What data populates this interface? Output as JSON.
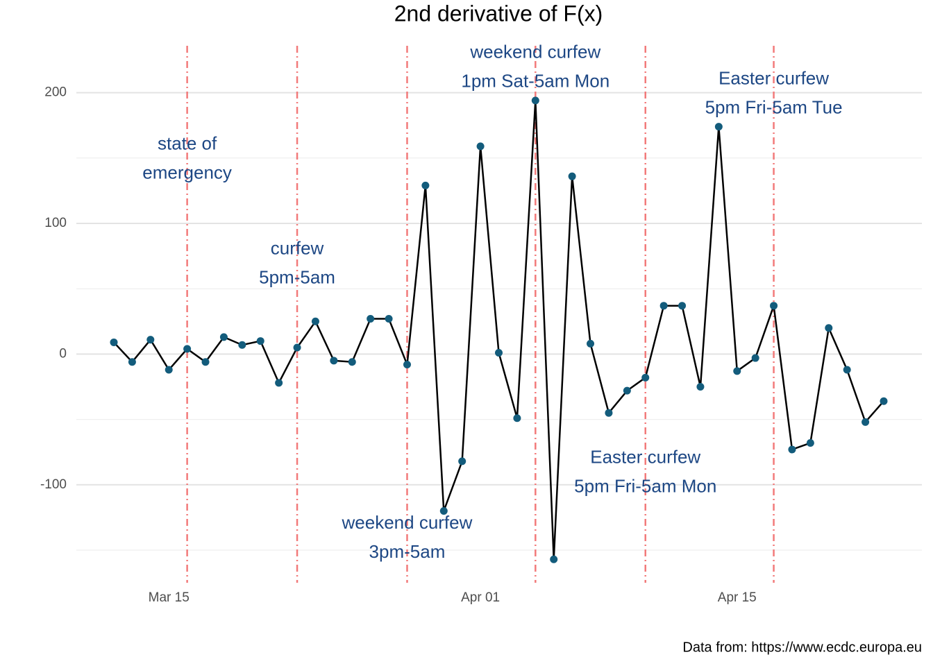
{
  "chart_data": {
    "type": "line",
    "title": "2nd derivative of F(x)",
    "caption": "Data from: https://www.ecdc.europa.eu",
    "x": [
      "Mar 12",
      "Mar 13",
      "Mar 14",
      "Mar 15",
      "Mar 16",
      "Mar 17",
      "Mar 18",
      "Mar 19",
      "Mar 20",
      "Mar 21",
      "Mar 22",
      "Mar 23",
      "Mar 24",
      "Mar 25",
      "Mar 26",
      "Mar 27",
      "Mar 28",
      "Mar 29",
      "Mar 30",
      "Mar 31",
      "Apr 01",
      "Apr 02",
      "Apr 03",
      "Apr 04",
      "Apr 05",
      "Apr 06",
      "Apr 07",
      "Apr 08",
      "Apr 09",
      "Apr 10",
      "Apr 11",
      "Apr 12",
      "Apr 13",
      "Apr 14",
      "Apr 15",
      "Apr 16",
      "Apr 17",
      "Apr 18",
      "Apr 19",
      "Apr 20",
      "Apr 21",
      "Apr 22",
      "Apr 23"
    ],
    "series": [
      {
        "name": "2nd derivative",
        "color": "#000000",
        "point_color": "#135c7c",
        "values": [
          9,
          -6,
          11,
          -12,
          4,
          -6,
          13,
          7,
          10,
          -22,
          5,
          25,
          -5,
          -6,
          27,
          27,
          -8,
          129,
          -120,
          -82,
          159,
          1,
          -49,
          194,
          -157,
          136,
          8,
          -45,
          -28,
          -18,
          37,
          37,
          -25,
          174,
          -13,
          -3,
          37,
          -73,
          -68,
          20,
          -12,
          -52,
          -36
        ]
      }
    ],
    "xticks": [
      "Mar 15",
      "Apr 01",
      "Apr 15"
    ],
    "ylim": [
      -176,
      238
    ],
    "yticks": [
      -100,
      0,
      100,
      200
    ],
    "yminor": [
      -150,
      -50,
      50,
      150
    ],
    "grid": true,
    "events": [
      {
        "x": "Mar 16",
        "y": 149,
        "lines": [
          "state of",
          "emergency"
        ]
      },
      {
        "x": "Mar 22",
        "y": 69,
        "lines": [
          "curfew",
          "5pm-5am"
        ]
      },
      {
        "x": "Mar 28",
        "y": -141,
        "lines": [
          "weekend curfew",
          "3pm-5am"
        ]
      },
      {
        "x": "Apr 04",
        "y": 219,
        "lines": [
          "weekend curfew",
          "1pm Sat-5am Mon"
        ]
      },
      {
        "x": "Apr 10",
        "y": -91,
        "lines": [
          "Easter curfew",
          "5pm Fri-5am Mon"
        ]
      },
      {
        "x": "Apr 17",
        "y": 199,
        "lines": [
          "Easter curfew",
          "5pm Fri-5am Tue"
        ]
      }
    ],
    "event_line_color": "#f27a7a",
    "annotation_color": "#1d4784"
  }
}
